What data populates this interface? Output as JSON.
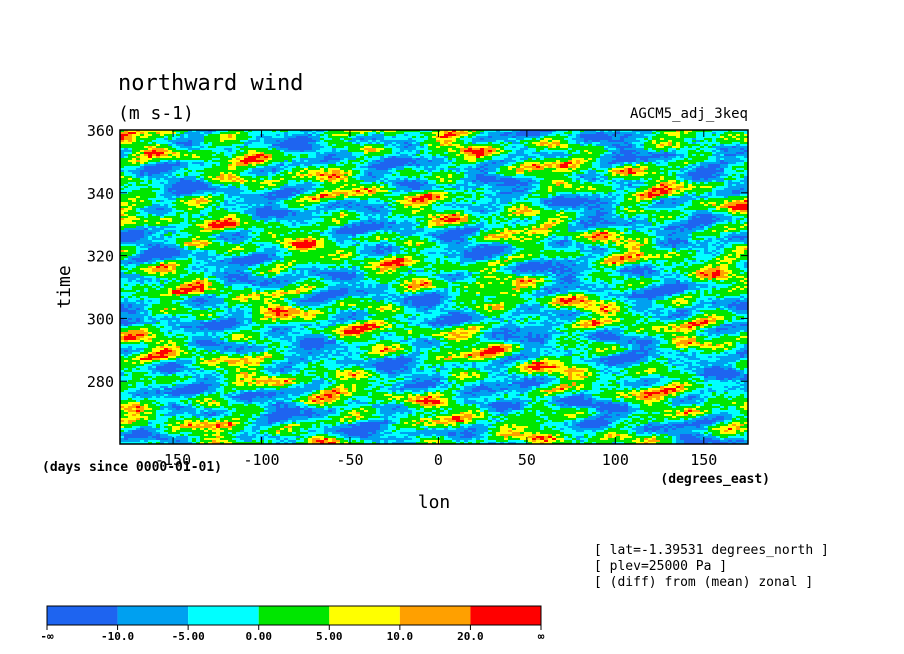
{
  "chart_data": {
    "type": "heatmap",
    "title": "northward wind",
    "units": "(m s-1)",
    "dataset": "AGCM5_adj_3keq",
    "xlabel": "lon",
    "ylabel": "time",
    "xunits": "(degrees_east)",
    "yunits": "(days since 0000-01-01)",
    "xlim": [
      -180,
      175
    ],
    "ylim": [
      260,
      360
    ],
    "xticks": [
      "-150",
      "-100",
      "-50",
      "0",
      "50",
      "100",
      "150"
    ],
    "xtick_values": [
      -150,
      -100,
      -50,
      0,
      50,
      100,
      150
    ],
    "yticks": [
      "360",
      "340",
      "320",
      "300",
      "280"
    ],
    "ytick_values": [
      360,
      340,
      320,
      300,
      280
    ],
    "annotations": [
      "[ lat=-1.39531 degrees_north ]",
      "[ plev=25000 Pa ]",
      "[ (diff) from (mean) zonal ]"
    ],
    "colorbar": {
      "labels": [
        "-∞",
        "-10.0",
        "-5.00",
        "0.00",
        "5.00",
        "10.0",
        "20.0",
        "∞"
      ],
      "colors": [
        "#1e64f0",
        "#00a0f0",
        "#00ffff",
        "#00e600",
        "#ffff00",
        "#ffa000",
        "#ff0000"
      ]
    }
  }
}
